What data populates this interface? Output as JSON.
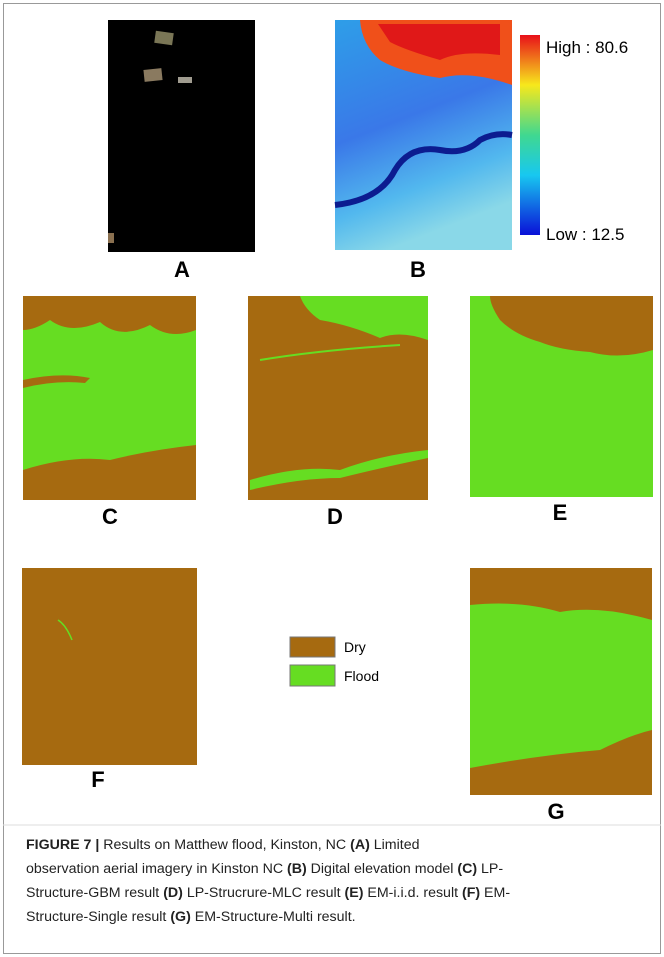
{
  "panels": {
    "a": {
      "label": "A"
    },
    "b": {
      "label": "B",
      "high": "High : 80.6",
      "low": "Low : 12.5"
    },
    "c": {
      "label": "C"
    },
    "d": {
      "label": "D"
    },
    "e": {
      "label": "E"
    },
    "f": {
      "label": "F"
    },
    "g": {
      "label": "G"
    }
  },
  "legend": {
    "dry": "Dry",
    "flood": "Flood"
  },
  "caption": {
    "lines": [
      [
        "FIGURE 7 |",
        " Results on Matthew flood, Kinston, NC ",
        "(A)",
        " Limited"
      ],
      [
        "observation aerial imagery in Kinston NC ",
        "(B)",
        " Digital elevation model ",
        "(C)",
        " LP-"
      ],
      [
        "Structure-GBM result ",
        "(D)",
        " LP-Strucrure-MLC result ",
        "(E)",
        " EM-i.i.d. result ",
        "(F)",
        " EM-"
      ],
      [
        "Structure-Single result ",
        "(G)",
        " EM-Structure-Multi result."
      ]
    ]
  }
}
